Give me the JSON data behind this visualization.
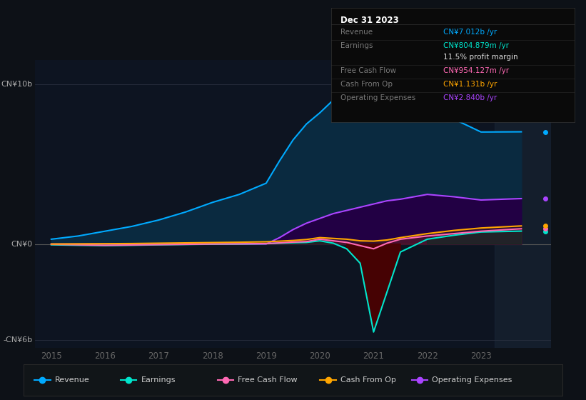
{
  "bg_color": "#0d1117",
  "chart_bg": "#0d1421",
  "years": [
    2015,
    2015.5,
    2016,
    2016.5,
    2017,
    2017.5,
    2018,
    2018.5,
    2019,
    2019.25,
    2019.5,
    2019.75,
    2020,
    2020.25,
    2020.5,
    2020.75,
    2021,
    2021.25,
    2021.5,
    2022,
    2022.5,
    2023,
    2023.75
  ],
  "revenue": [
    0.3,
    0.5,
    0.8,
    1.1,
    1.5,
    2.0,
    2.6,
    3.1,
    3.8,
    5.2,
    6.5,
    7.5,
    8.2,
    9.0,
    9.5,
    9.8,
    10.2,
    9.5,
    8.8,
    8.3,
    7.8,
    7.0,
    7.012
  ],
  "earnings": [
    -0.05,
    -0.08,
    -0.1,
    -0.08,
    -0.05,
    -0.03,
    -0.01,
    0.0,
    0.02,
    0.05,
    0.08,
    0.1,
    0.2,
    0.05,
    -0.3,
    -1.2,
    -5.5,
    -3.0,
    -0.5,
    0.3,
    0.55,
    0.75,
    0.805
  ],
  "free_cash_flow": [
    -0.02,
    -0.05,
    -0.08,
    -0.06,
    -0.04,
    -0.02,
    0.0,
    0.01,
    0.03,
    0.07,
    0.12,
    0.15,
    0.3,
    0.2,
    0.1,
    -0.1,
    -0.3,
    0.05,
    0.3,
    0.5,
    0.65,
    0.8,
    0.954
  ],
  "cash_from_op": [
    0.0,
    0.01,
    0.02,
    0.03,
    0.05,
    0.07,
    0.09,
    0.11,
    0.14,
    0.18,
    0.22,
    0.28,
    0.4,
    0.35,
    0.3,
    0.2,
    0.18,
    0.25,
    0.4,
    0.65,
    0.85,
    1.0,
    1.131
  ],
  "op_expenses": [
    0.0,
    0.0,
    0.0,
    0.0,
    0.0,
    0.0,
    0.0,
    0.0,
    0.0,
    0.4,
    0.9,
    1.3,
    1.6,
    1.9,
    2.1,
    2.3,
    2.5,
    2.7,
    2.8,
    3.1,
    2.95,
    2.75,
    2.84
  ],
  "revenue_color": "#00aaff",
  "earnings_color": "#00e5cc",
  "fcf_color": "#ff69b4",
  "cashop_color": "#ffa500",
  "opex_color": "#aa44ff",
  "revenue_fill": "#0a2a40",
  "earnings_fill_neg": "#4d0000",
  "opex_fill": "#220044",
  "ylim": [
    -6.5,
    11.5
  ],
  "xlim": [
    2014.7,
    2024.3
  ],
  "xticks": [
    2015,
    2016,
    2017,
    2018,
    2019,
    2020,
    2021,
    2022,
    2023
  ],
  "y_label_10b": 10,
  "y_label_0": 0,
  "y_label_neg6b": -6,
  "infobox": {
    "title": "Dec 31 2023",
    "rows": [
      {
        "label": "Revenue",
        "value": "CN¥7.012b /yr",
        "value_color": "#00aaff"
      },
      {
        "label": "Earnings",
        "value": "CN¥804.879m /yr",
        "value_color": "#00e5cc"
      },
      {
        "label": "",
        "value": "11.5% profit margin",
        "value_color": "#dddddd"
      },
      {
        "label": "Free Cash Flow",
        "value": "CN¥954.127m /yr",
        "value_color": "#ff69b4"
      },
      {
        "label": "Cash From Op",
        "value": "CN¥1.131b /yr",
        "value_color": "#ffa500"
      },
      {
        "label": "Operating Expenses",
        "value": "CN¥2.840b /yr",
        "value_color": "#aa44ff"
      }
    ]
  },
  "legend_items": [
    {
      "label": "Revenue",
      "color": "#00aaff"
    },
    {
      "label": "Earnings",
      "color": "#00e5cc"
    },
    {
      "label": "Free Cash Flow",
      "color": "#ff69b4"
    },
    {
      "label": "Cash From Op",
      "color": "#ffa500"
    },
    {
      "label": "Operating Expenses",
      "color": "#aa44ff"
    }
  ],
  "shade_start": 2023.25,
  "shade_color": "#1a2535"
}
